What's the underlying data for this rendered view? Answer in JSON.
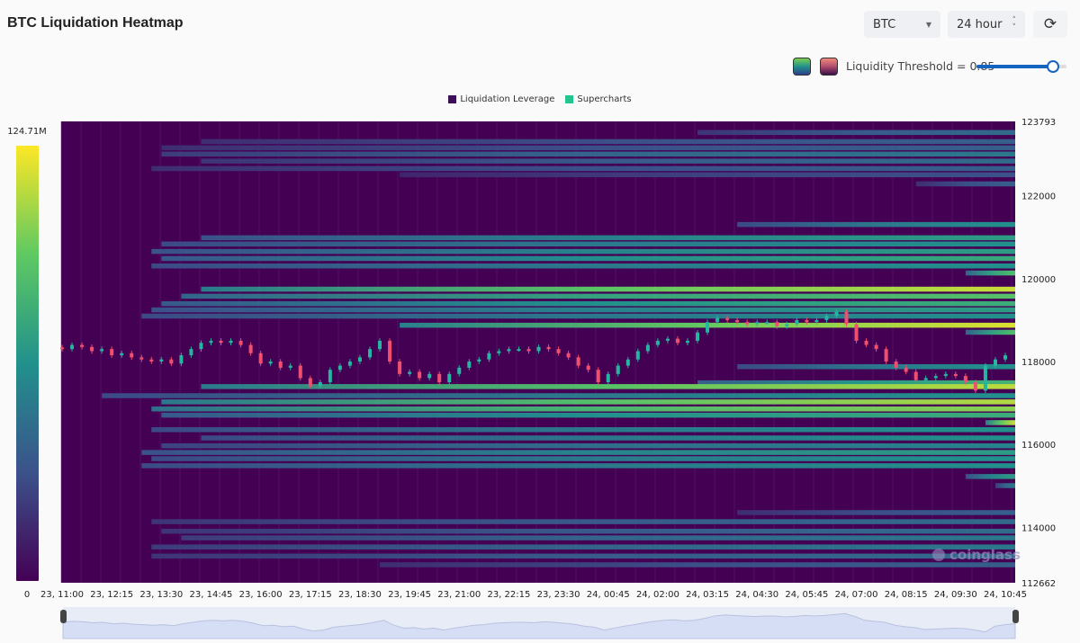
{
  "header": {
    "title": "BTC Liquidation Heatmap",
    "coin_select": "BTC",
    "range_select": "24 hour",
    "refresh_icon": "refresh-icon"
  },
  "threshold": {
    "label": "Liquidity Threshold = 0.85",
    "value": 0.85,
    "palettes": [
      "viridis",
      "magma"
    ]
  },
  "colors": {
    "background": "#440154",
    "up": "#26b5a0",
    "down": "#f0506e",
    "slider": "#1565c0"
  },
  "watermark": "coinglass",
  "chart_data": {
    "type": "heatmap",
    "legend": [
      {
        "name": "Liquidation Leverage",
        "color": "#3b0f55"
      },
      {
        "name": "Supercharts",
        "color": "#22c58b"
      }
    ],
    "legend_position": "top",
    "colorbar": {
      "min_label": "0",
      "max_label": "124.71M",
      "min": 0,
      "max": 124710000,
      "colormap": "viridis"
    },
    "y_axis": {
      "position": "right",
      "ylim": [
        112662,
        123793
      ],
      "ticks": [
        "123793",
        "122000",
        "120000",
        "118000",
        "116000",
        "114000",
        "112662"
      ]
    },
    "x_axis": {
      "ticks": [
        "23, 11:00",
        "23, 12:15",
        "23, 13:30",
        "23, 14:45",
        "23, 16:00",
        "23, 17:15",
        "23, 18:30",
        "23, 19:45",
        "23, 21:00",
        "23, 22:15",
        "23, 23:30",
        "24, 00:45",
        "24, 02:00",
        "24, 03:15",
        "24, 04:30",
        "24, 05:45",
        "24, 07:00",
        "24, 08:15",
        "24, 09:30",
        "24, 10:45"
      ],
      "start": "23 11:00",
      "interval_minutes": 15
    },
    "bands": [
      {
        "price": 123520,
        "start": "24 03:00",
        "intensity": 0.35
      },
      {
        "price": 123300,
        "start": "23 14:30",
        "intensity": 0.3
      },
      {
        "price": 123150,
        "start": "23 13:30",
        "intensity": 0.3
      },
      {
        "price": 123000,
        "start": "23 13:30",
        "intensity": 0.4
      },
      {
        "price": 122830,
        "start": "23 14:30",
        "intensity": 0.35
      },
      {
        "price": 122650,
        "start": "23 13:15",
        "intensity": 0.3
      },
      {
        "price": 122500,
        "start": "23 19:30",
        "intensity": 0.25
      },
      {
        "price": 122280,
        "start": "24 08:30",
        "intensity": 0.3
      },
      {
        "price": 121300,
        "start": "24 04:00",
        "intensity": 0.5
      },
      {
        "price": 120980,
        "start": "23 14:30",
        "intensity": 0.55
      },
      {
        "price": 120830,
        "start": "23 13:30",
        "intensity": 0.5
      },
      {
        "price": 120650,
        "start": "23 13:15",
        "intensity": 0.55
      },
      {
        "price": 120480,
        "start": "23 13:30",
        "intensity": 0.6
      },
      {
        "price": 120300,
        "start": "23 13:15",
        "intensity": 0.5
      },
      {
        "price": 120130,
        "start": "24 09:45",
        "intensity": 0.7
      },
      {
        "price": 119740,
        "start": "23 14:30",
        "intensity": 0.92
      },
      {
        "price": 119570,
        "start": "23 14:00",
        "intensity": 0.72
      },
      {
        "price": 119390,
        "start": "23 13:30",
        "intensity": 0.62
      },
      {
        "price": 119240,
        "start": "23 13:15",
        "intensity": 0.55
      },
      {
        "price": 119090,
        "start": "23 13:00",
        "intensity": 0.5
      },
      {
        "price": 118870,
        "start": "23 19:30",
        "intensity": 0.95
      },
      {
        "price": 118700,
        "start": "24 09:45",
        "intensity": 0.7
      },
      {
        "price": 117870,
        "start": "24 04:00",
        "intensity": 0.5
      },
      {
        "price": 117480,
        "start": "24 03:00",
        "intensity": 0.65
      },
      {
        "price": 117390,
        "start": "23 14:30",
        "intensity": 0.9
      },
      {
        "price": 117170,
        "start": "23 12:00",
        "intensity": 0.5
      },
      {
        "price": 117020,
        "start": "23 13:30",
        "intensity": 0.88
      },
      {
        "price": 116850,
        "start": "23 13:15",
        "intensity": 0.82
      },
      {
        "price": 116700,
        "start": "23 13:30",
        "intensity": 0.62
      },
      {
        "price": 116520,
        "start": "24 10:15",
        "intensity": 0.92
      },
      {
        "price": 116350,
        "start": "23 13:15",
        "intensity": 0.5
      },
      {
        "price": 116150,
        "start": "23 14:30",
        "intensity": 0.5
      },
      {
        "price": 115960,
        "start": "23 13:30",
        "intensity": 0.45
      },
      {
        "price": 115800,
        "start": "23 13:00",
        "intensity": 0.55
      },
      {
        "price": 115650,
        "start": "23 13:15",
        "intensity": 0.5
      },
      {
        "price": 115480,
        "start": "23 13:00",
        "intensity": 0.5
      },
      {
        "price": 115220,
        "start": "24 09:45",
        "intensity": 0.55
      },
      {
        "price": 115000,
        "start": "24 10:30",
        "intensity": 0.4
      },
      {
        "price": 114350,
        "start": "24 04:00",
        "intensity": 0.3
      },
      {
        "price": 114130,
        "start": "23 13:15",
        "intensity": 0.35
      },
      {
        "price": 113900,
        "start": "23 13:30",
        "intensity": 0.35
      },
      {
        "price": 113740,
        "start": "23 14:00",
        "intensity": 0.4
      },
      {
        "price": 113520,
        "start": "23 13:15",
        "intensity": 0.4
      },
      {
        "price": 113300,
        "start": "23 13:15",
        "intensity": 0.35
      },
      {
        "price": 113090,
        "start": "23 19:00",
        "intensity": 0.3
      }
    ],
    "closes": [
      118300,
      118400,
      118350,
      118250,
      118300,
      118150,
      118200,
      118100,
      118050,
      118000,
      118050,
      117950,
      118150,
      118300,
      118450,
      118500,
      118450,
      118500,
      118400,
      118200,
      117950,
      118000,
      117850,
      117900,
      117600,
      117400,
      117500,
      117800,
      117900,
      118000,
      118100,
      118300,
      118500,
      118000,
      117700,
      117750,
      117600,
      117700,
      117500,
      117700,
      117850,
      118000,
      118050,
      118200,
      118250,
      118300,
      118300,
      118250,
      118350,
      118300,
      118200,
      118100,
      117900,
      117800,
      117500,
      117700,
      117900,
      118050,
      118250,
      118400,
      118500,
      118550,
      118450,
      118500,
      118700,
      118950,
      119050,
      119000,
      118950,
      118900,
      118950,
      118950,
      118850,
      118900,
      119000,
      118950,
      119000,
      119100,
      119200,
      118900,
      118500,
      118400,
      118300,
      118000,
      117850,
      117750,
      117550,
      117600,
      117650,
      117700,
      117650,
      117500,
      117300,
      117900,
      118050,
      118150
    ]
  }
}
